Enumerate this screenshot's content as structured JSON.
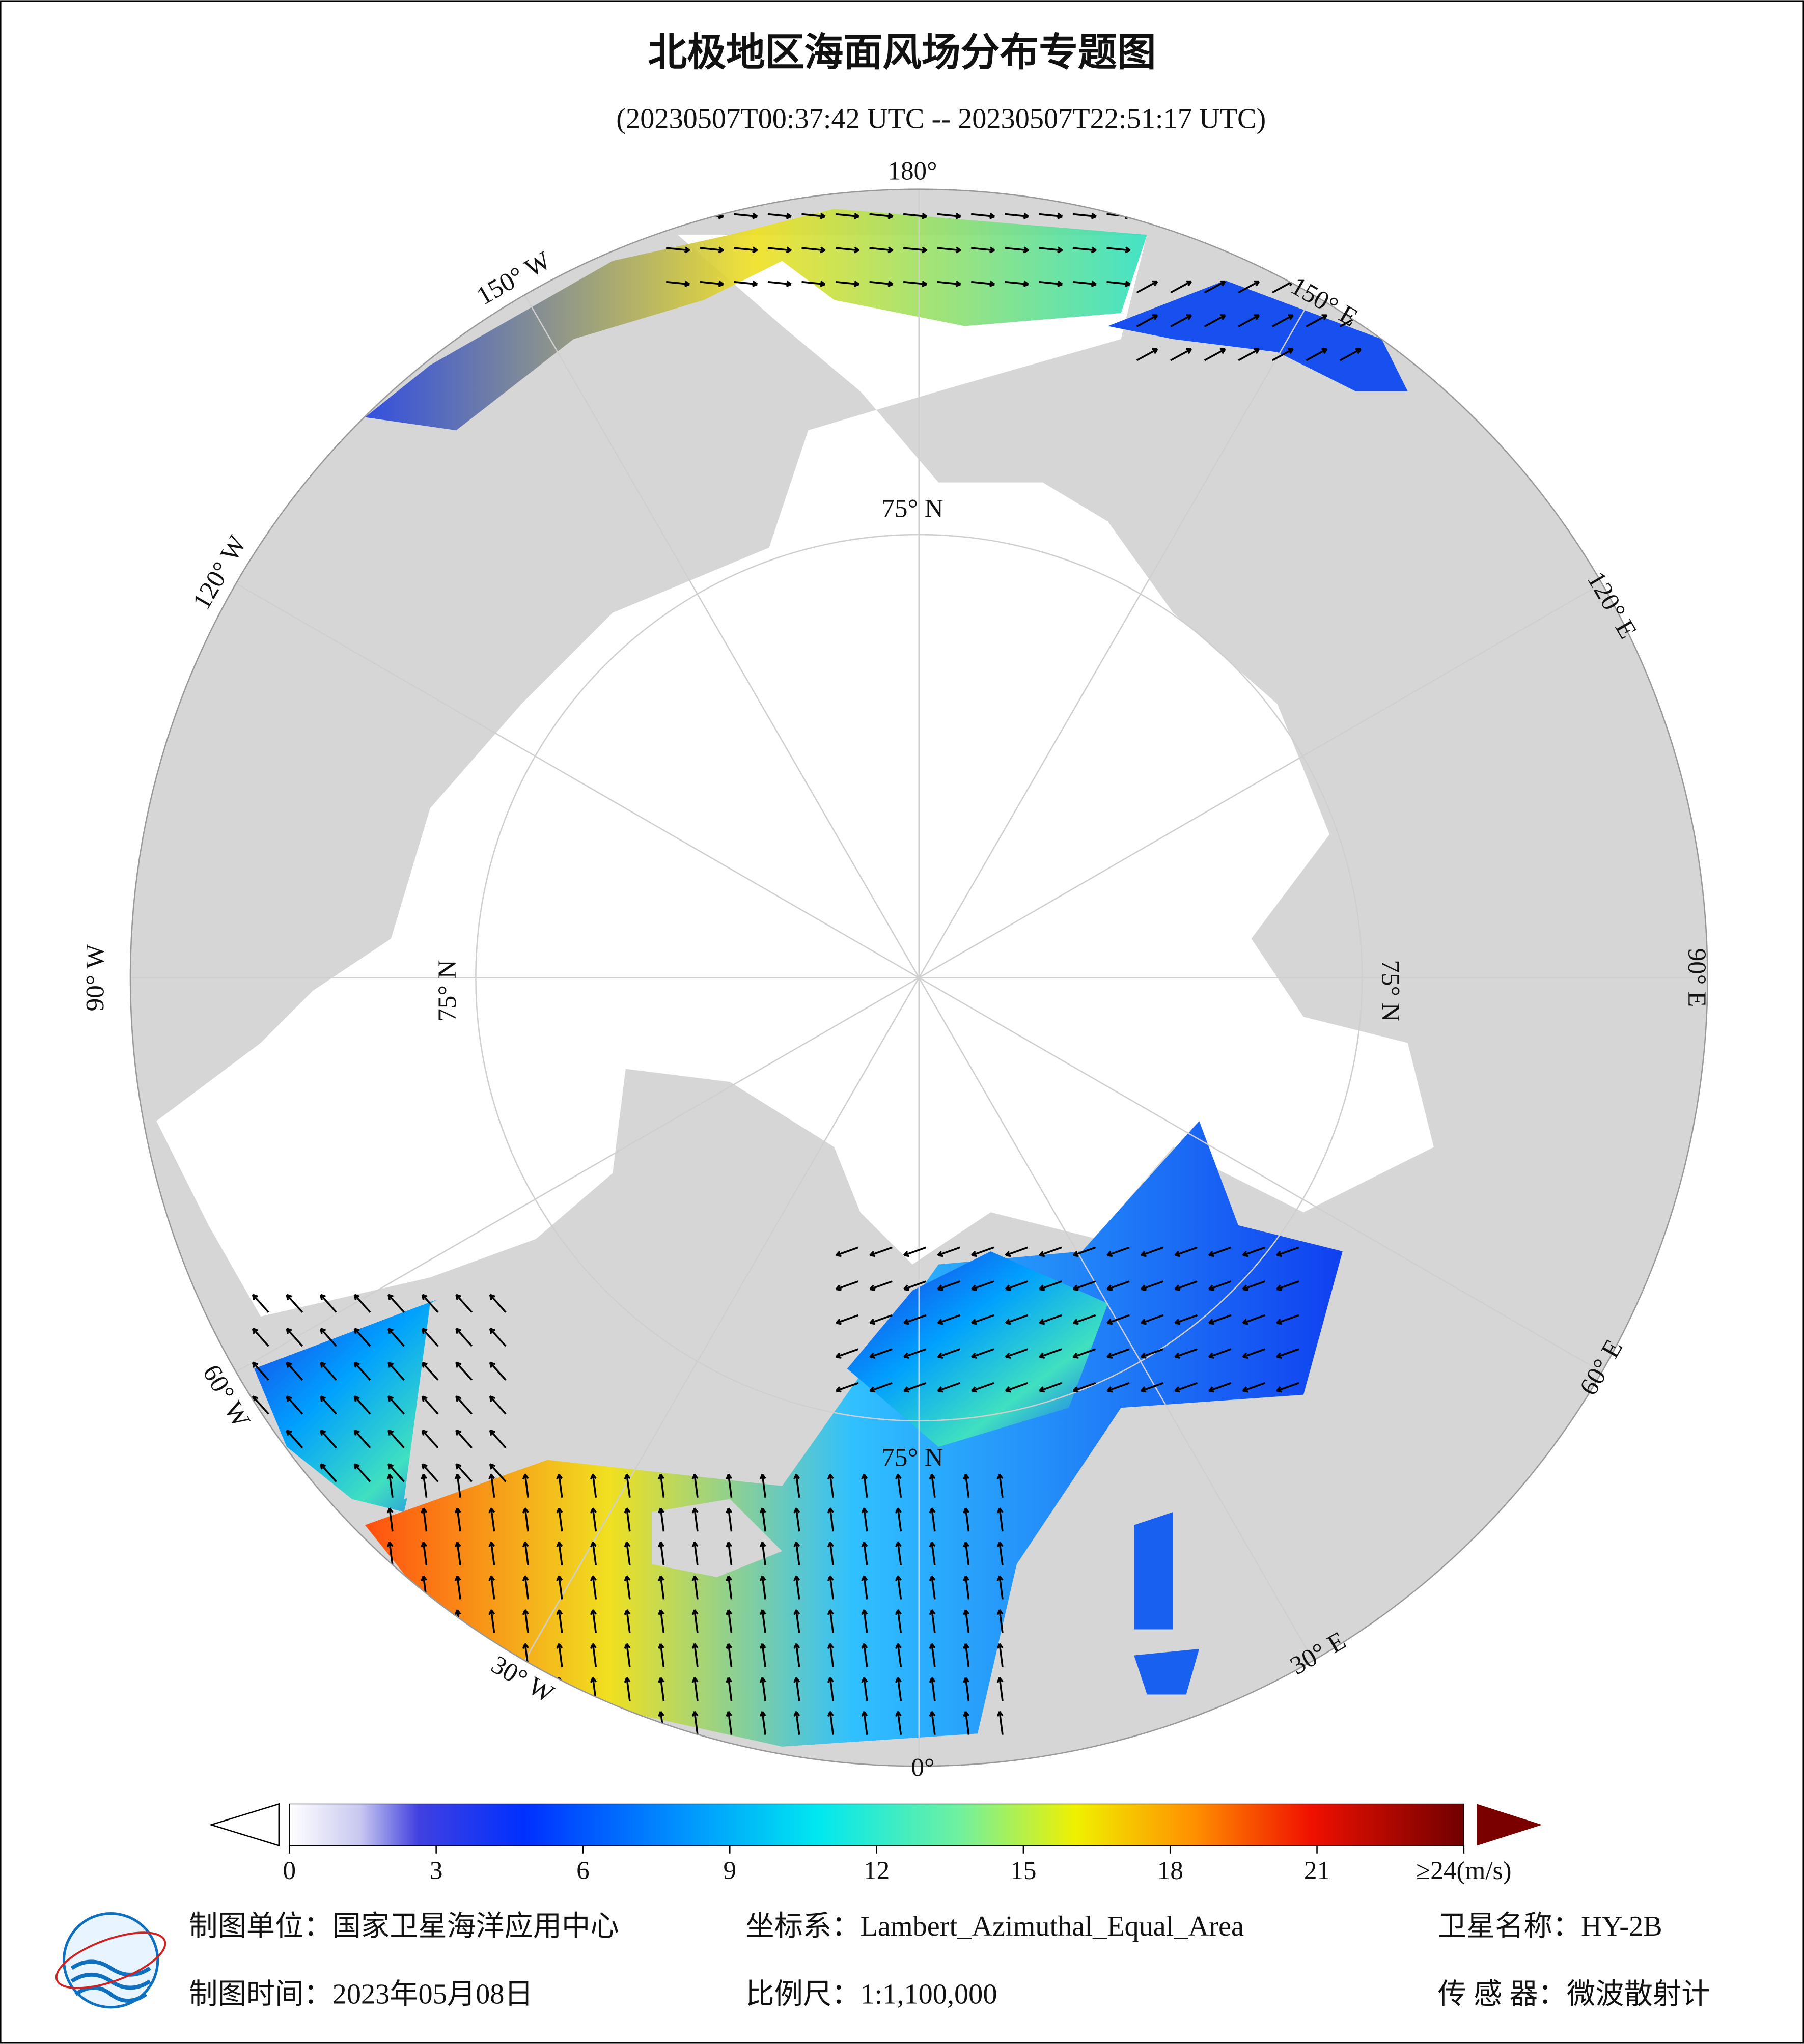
{
  "header": {
    "title": "北极地区海面风场分布专题图",
    "subtitle": "(20230507T00:37:42 UTC -- 20230507T22:51:17 UTC)"
  },
  "map": {
    "graticule_labels": [
      "180°",
      "150° W",
      "120° W",
      "90° W",
      "60° W",
      "30° W",
      "0°",
      "30° E",
      "60° E",
      "90° E",
      "120° E",
      "150° E",
      "75° N",
      "75° N",
      "75° N",
      "75° N"
    ]
  },
  "colorbar": {
    "range": [
      0,
      24
    ],
    "ticks": [
      0,
      3,
      6,
      9,
      12,
      15,
      18,
      {
        "value": 21,
        "label": "21"
      },
      {
        "value": 24,
        "label": "≥24(m/s)"
      }
    ]
  },
  "footer": {
    "rows": [
      [
        "制图单位：国家卫星海洋应用中心",
        "坐标系：Lambert_Azimuthal_Equal_Area",
        "卫星名称：HY-2B"
      ],
      [
        "制图时间：2023年05月08日",
        "比例尺：1:1,100,000",
        "传 感 器：微波散射计"
      ]
    ]
  }
}
